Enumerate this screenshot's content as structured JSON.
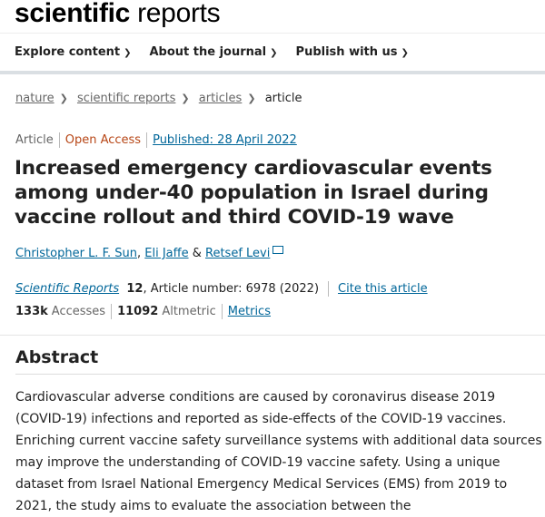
{
  "logo": {
    "bold": "scientific",
    "light": "reports"
  },
  "nav": [
    {
      "label": "Explore content"
    },
    {
      "label": "About the journal"
    },
    {
      "label": "Publish with us"
    }
  ],
  "breadcrumb": [
    {
      "label": "nature"
    },
    {
      "label": "scientific reports"
    },
    {
      "label": "articles"
    },
    {
      "label": "article"
    }
  ],
  "meta": {
    "type": "Article",
    "access": "Open Access",
    "published": "Published: 28 April 2022"
  },
  "title": "Increased emergency cardiovascular events among under-40 population in Israel during vaccine rollout and third COVID-19 wave",
  "authors": [
    {
      "name": "Christopher L. F. Sun"
    },
    {
      "name": "Eli Jaffe"
    },
    {
      "name": "Retsef Levi"
    }
  ],
  "author_sep": [
    ",",
    "&"
  ],
  "citation": {
    "journal": "Scientific Reports",
    "volume": "12",
    "article": ", Article number: 6978 (2022)",
    "cite_link": "Cite this article"
  },
  "stats": {
    "accesses": "133k",
    "accesses_label": "Accesses",
    "altmetric": "11092",
    "altmetric_label": "Altmetric",
    "metrics_link": "Metrics"
  },
  "abstract": {
    "heading": "Abstract",
    "text": "Cardiovascular adverse conditions are caused by coronavirus disease 2019 (COVID-19) infections and reported as side-effects of the COVID-19 vaccines. Enriching current vaccine safety surveillance systems with additional data sources may improve the understanding of COVID-19 vaccine safety. Using a unique dataset from Israel National Emergency Medical Services (EMS) from 2019 to 2021, the study aims to evaluate the association between the"
  }
}
